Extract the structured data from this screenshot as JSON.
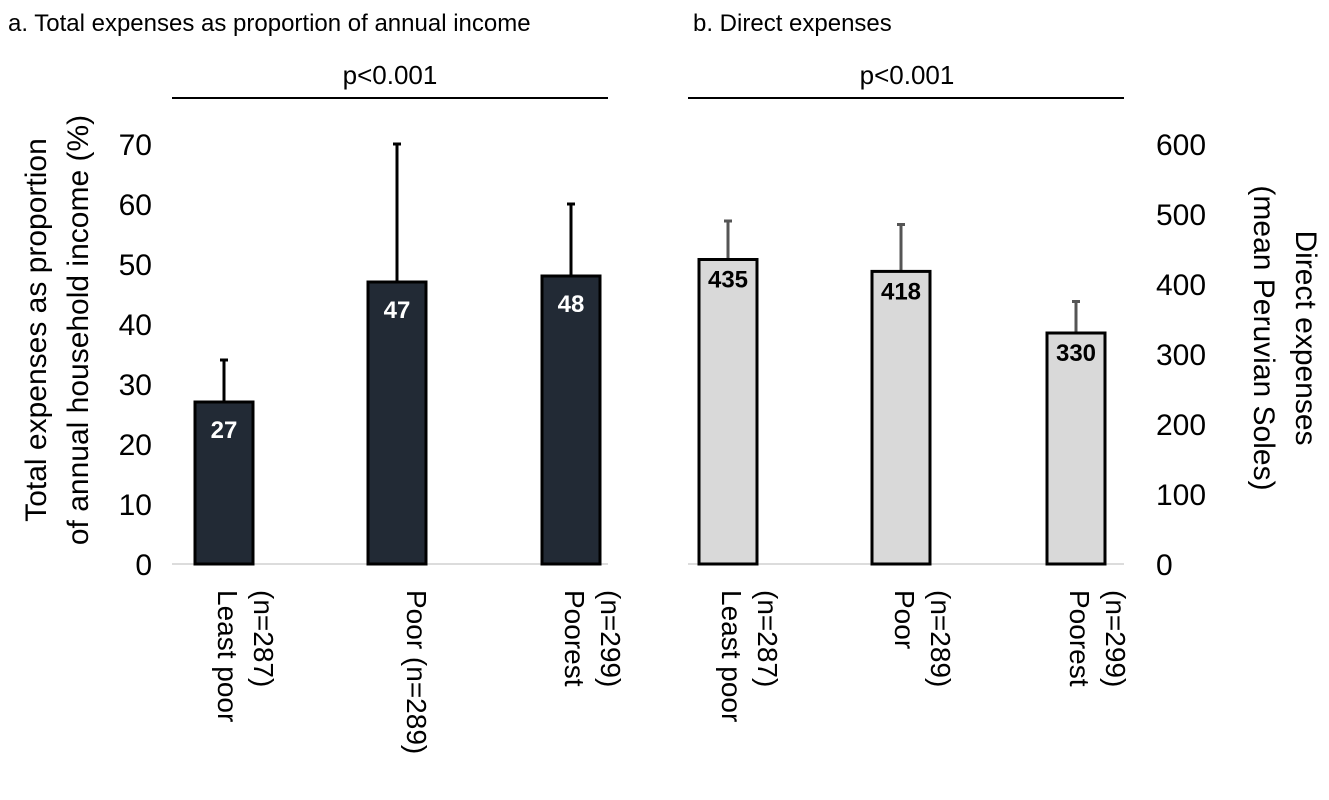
{
  "chart_data": [
    {
      "panel_title": "a. Total expenses as proportion of annual income",
      "type": "bar",
      "categories": [
        [
          "Least poor",
          "(n=287)"
        ],
        [
          "Poor (n=289)"
        ],
        [
          "Poorest",
          "(n=299)"
        ]
      ],
      "values": [
        27,
        47,
        48
      ],
      "data_labels": [
        "27",
        "47",
        "48"
      ],
      "error_upper": [
        34,
        70,
        60
      ],
      "ylabel": [
        "Total expenses as proportion",
        "of annual household income (%)"
      ],
      "ylim": [
        0,
        70
      ],
      "yticks": [
        0,
        10,
        20,
        30,
        40,
        50,
        60,
        70
      ],
      "axis_side": "left",
      "significance": "p<0.001",
      "bar_color": "#222a35",
      "label_color": "#ffffff",
      "grid": false
    },
    {
      "panel_title": "b. Direct expenses",
      "type": "bar",
      "categories": [
        [
          "Least poor",
          "(n=287)"
        ],
        [
          "Poor",
          "(n=289)"
        ],
        [
          "Poorest",
          "(n=299)"
        ]
      ],
      "values": [
        435,
        418,
        330
      ],
      "data_labels": [
        "435",
        "418",
        "330"
      ],
      "error_upper": [
        490,
        485,
        375
      ],
      "ylabel": [
        "Direct expenses",
        "(mean Peruvian Soles)"
      ],
      "ylim": [
        0,
        600
      ],
      "yticks": [
        0,
        100,
        200,
        300,
        400,
        500,
        600
      ],
      "axis_side": "right",
      "significance": "p<0.001",
      "bar_color": "#d9d9d9",
      "label_color": "#000000",
      "grid": false
    }
  ]
}
